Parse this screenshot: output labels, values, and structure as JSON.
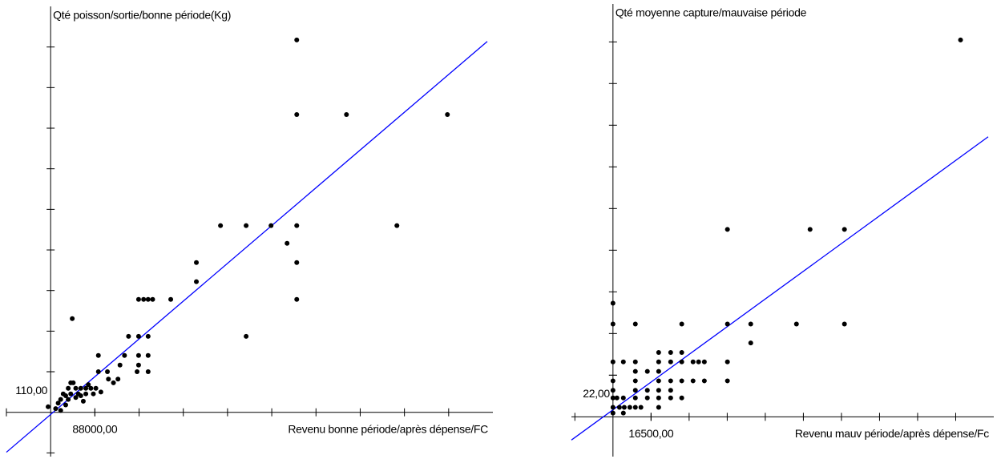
{
  "chart_data": [
    {
      "type": "scatter",
      "y_label": "Qté poisson/sortie/bonne période(Kg)",
      "x_label": "Revenu bonne période/après dépense/FC",
      "xlim": [
        -88000,
        880000
      ],
      "ylim": [
        -120,
        1100
      ],
      "xticks": [
        {
          "value": 88000,
          "label": "88000,00"
        }
      ],
      "yticks": [
        {
          "value": 110,
          "label": "110,00"
        }
      ],
      "xtick_marks": [
        -88000,
        88000,
        176000,
        264000,
        352000,
        440000,
        528000,
        616000,
        704000,
        792000
      ],
      "ytick_marks": [
        -110,
        110,
        220,
        330,
        440,
        550,
        660,
        770,
        880,
        990
      ],
      "point_color": "#000000",
      "fit_color": "#0000ff",
      "fit": {
        "slope": 0.00115,
        "intercept": -7
      },
      "x": [
        489700,
        489700,
        588600,
        789500,
        338000,
        389000,
        438600,
        489700,
        689000,
        470500,
        290000,
        489700,
        290000,
        489700,
        175000,
        185000,
        194000,
        203000,
        239000,
        389000,
        43000,
        155000,
        175000,
        194000,
        175000,
        194000,
        147000,
        175000,
        194000,
        138000,
        172000,
        95000,
        95000,
        113000,
        134000,
        115000,
        125000,
        40000,
        45000,
        35000,
        50000,
        60000,
        70000,
        80000,
        90000,
        25000,
        40000,
        55000,
        70000,
        85000,
        100000,
        20000,
        35000,
        50000,
        65000,
        15000,
        30000,
        -5000,
        10000,
        20000,
        30000,
        60000,
        75000
      ],
      "y": [
        1009,
        807,
        807,
        807,
        506,
        506,
        506,
        506,
        506,
        458,
        406,
        406,
        354,
        306,
        306,
        306,
        306,
        306,
        306,
        206,
        254,
        206,
        206,
        206,
        154,
        154,
        154,
        128,
        110,
        128,
        110,
        154,
        110,
        110,
        90,
        90,
        80,
        80,
        80,
        65,
        65,
        65,
        65,
        65,
        65,
        50,
        50,
        50,
        50,
        50,
        55,
        35,
        35,
        40,
        30,
        25,
        20,
        15,
        10,
        5,
        45,
        45,
        75
      ]
    },
    {
      "type": "scatter",
      "y_label": "Qté moyenne capture/mauvaise période",
      "x_label": "Revenu mauv période/après dépense/Fc",
      "xlim": [
        -18000,
        165000
      ],
      "ylim": [
        -21,
        218
      ],
      "xticks": [
        {
          "value": 16500,
          "label": "16500,00"
        }
      ],
      "yticks": [
        {
          "value": 22,
          "label": "22,00"
        }
      ],
      "xtick_marks": [
        -16500,
        16500,
        33000,
        49500,
        66000,
        82500,
        99000,
        115500,
        132000,
        148500
      ],
      "ytick_marks": [
        22,
        44,
        66,
        88,
        110,
        132,
        154,
        176,
        198
      ],
      "point_color": "#000000",
      "fit_color": "#0000ff",
      "fit": {
        "slope": 0.000875,
        "intercept": 3.5
      },
      "x": [
        150600,
        49600,
        85400,
        100300,
        0,
        0,
        9700,
        29800,
        49600,
        59700,
        79500,
        100300,
        59700,
        19800,
        25000,
        29800,
        4500,
        9700,
        19800,
        25000,
        29800,
        34700,
        37100,
        39600,
        49600,
        0,
        9700,
        14900,
        19800,
        9700,
        19800,
        25000,
        29800,
        34700,
        39600,
        49600,
        0,
        0,
        9700,
        14900,
        19800,
        25000,
        4500,
        0,
        1700,
        9700,
        14900,
        19800,
        25000,
        29800,
        0,
        2800,
        4900,
        7300,
        9700,
        12100,
        19800,
        4500,
        0
      ],
      "y": [
        199,
        99,
        99,
        99,
        60,
        49,
        49,
        49,
        49,
        49,
        49,
        49,
        39,
        34,
        34,
        34,
        29,
        29,
        29,
        29,
        29,
        29,
        29,
        29,
        29,
        29,
        24,
        24,
        24,
        19,
        19,
        19,
        19,
        19,
        19,
        19,
        19,
        14,
        14,
        14,
        14,
        14,
        10,
        10,
        10,
        10,
        10,
        10,
        10,
        10,
        5,
        5,
        5,
        5,
        5,
        5,
        5,
        2,
        2
      ]
    }
  ]
}
